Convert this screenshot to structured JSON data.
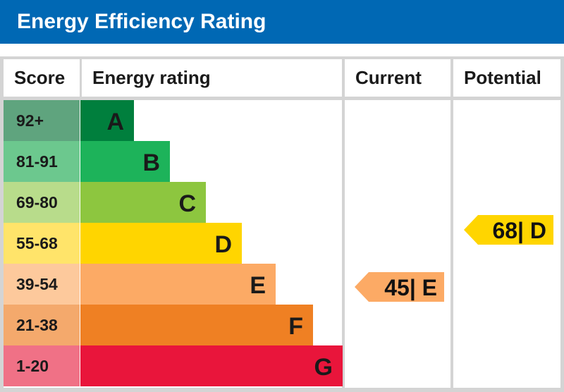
{
  "title": "Energy Efficiency Rating",
  "headers": {
    "score": "Score",
    "rating": "Energy rating",
    "current": "Current",
    "potential": "Potential"
  },
  "chart_data": {
    "type": "table",
    "bands": [
      {
        "score": "92+",
        "letter": "A",
        "color": "#007f3d",
        "score_color": "#5fa47e"
      },
      {
        "score": "81-91",
        "letter": "B",
        "color": "#1db35a",
        "score_color": "#6cc88e"
      },
      {
        "score": "69-80",
        "letter": "C",
        "color": "#8dc63f",
        "score_color": "#b8dc8b"
      },
      {
        "score": "55-68",
        "letter": "D",
        "color": "#ffd500",
        "score_color": "#ffe46a"
      },
      {
        "score": "39-54",
        "letter": "E",
        "color": "#fcaa65",
        "score_color": "#fdc99c"
      },
      {
        "score": "21-38",
        "letter": "F",
        "color": "#ef8023",
        "score_color": "#f4a96c"
      },
      {
        "score": "1-20",
        "letter": "G",
        "color": "#e9153b",
        "score_color": "#f07186"
      }
    ],
    "current": {
      "label": "45| E",
      "value": 45,
      "band": "E",
      "color": "#fcaa65"
    },
    "potential": {
      "label": "68| D",
      "value": 68,
      "band": "D",
      "color": "#ffd500"
    }
  }
}
